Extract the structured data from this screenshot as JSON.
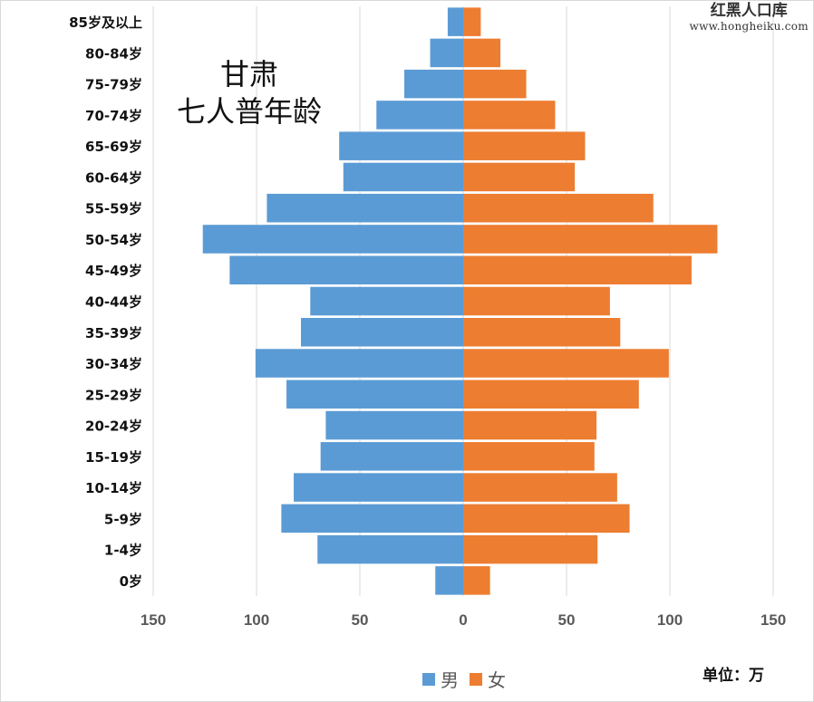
{
  "title_line1": "甘肃",
  "title_line2": "七人普年龄",
  "watermark": {
    "name": "红黑人口库",
    "url": "www.hongheiku.com"
  },
  "unit_label": "单位：万",
  "colors": {
    "male": "#5b9bd5",
    "female": "#ed7d31",
    "grid": "#d9d9d9"
  },
  "chart_data": {
    "type": "bar",
    "orientation": "horizontal-population-pyramid",
    "title": "甘肃 七人普年龄",
    "categories": [
      "85岁及以上",
      "80-84岁",
      "75-79岁",
      "70-74岁",
      "65-69岁",
      "60-64岁",
      "55-59岁",
      "50-54岁",
      "45-49岁",
      "40-44岁",
      "35-39岁",
      "30-34岁",
      "25-29岁",
      "20-24岁",
      "15-19岁",
      "10-14岁",
      "5-9岁",
      "1-4岁",
      "0岁"
    ],
    "series": [
      {
        "name": "男",
        "values": [
          7.5,
          16,
          28.5,
          42,
          60,
          58,
          95,
          126,
          113,
          74,
          78.5,
          100.5,
          85.5,
          66.5,
          69,
          82,
          88,
          70.5,
          13.5
        ]
      },
      {
        "name": "女",
        "values": [
          8.5,
          18,
          30.5,
          44.5,
          59,
          54,
          92,
          123,
          110.5,
          71,
          76,
          99.5,
          85,
          64.5,
          63.5,
          74.5,
          80.5,
          65,
          13
        ]
      }
    ],
    "xlim": [
      -150,
      150
    ],
    "x_ticks": [
      -150,
      -100,
      -50,
      0,
      50,
      100,
      150
    ],
    "x_tick_labels": [
      "150",
      "100",
      "50",
      "0",
      "50",
      "100",
      "150"
    ],
    "grid": true,
    "legend": "bottom"
  }
}
